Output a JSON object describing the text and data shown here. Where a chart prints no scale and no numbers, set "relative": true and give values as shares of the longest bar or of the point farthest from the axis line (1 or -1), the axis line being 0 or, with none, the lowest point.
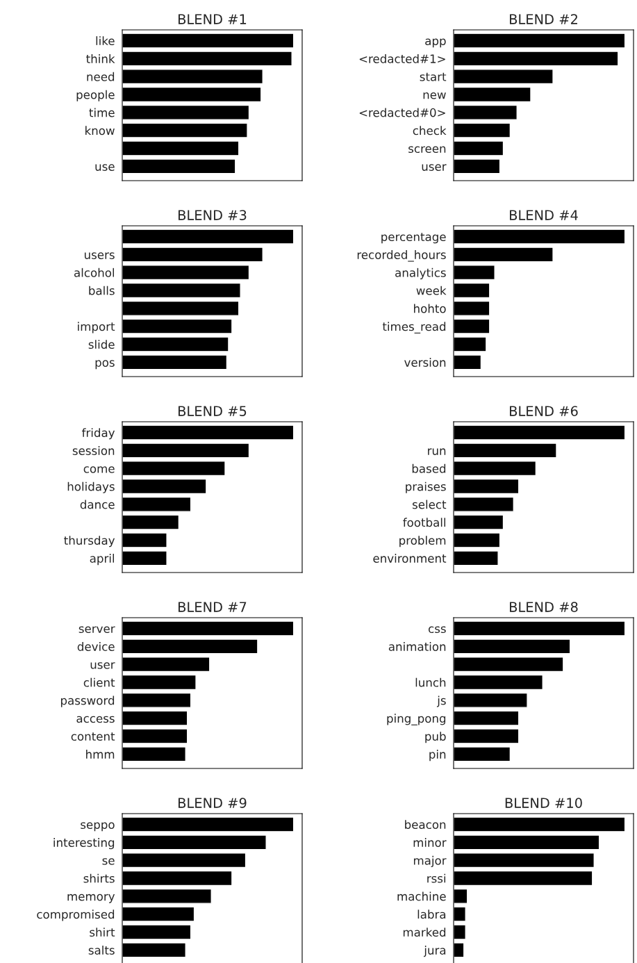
{
  "chart_data": [
    {
      "type": "bar",
      "orientation": "horizontal",
      "relative": true,
      "tick_labels": "y",
      "color": "#000000",
      "title": "BLEND #1",
      "categories": [
        "like",
        "think",
        "need",
        "people",
        "time",
        "know",
        null,
        "use"
      ],
      "values": [
        1,
        0.99,
        0.82,
        0.81,
        0.74,
        0.73,
        0.68,
        0.66
      ]
    },
    {
      "type": "bar",
      "orientation": "horizontal",
      "relative": true,
      "tick_labels": "y",
      "color": "#000000",
      "title": "BLEND #2",
      "categories": [
        "app",
        "<redacted#1>",
        "start",
        "new",
        "<redacted#0>",
        "check",
        "screen",
        "user"
      ],
      "values": [
        1,
        0.96,
        0.58,
        0.45,
        0.37,
        0.33,
        0.29,
        0.27
      ]
    },
    {
      "type": "bar",
      "orientation": "horizontal",
      "relative": true,
      "tick_labels": "y",
      "color": "#000000",
      "title": "BLEND #3",
      "categories": [
        null,
        "users",
        "alcohol",
        "balls",
        null,
        "import",
        "slide",
        "pos"
      ],
      "values": [
        1,
        0.82,
        0.74,
        0.69,
        0.68,
        0.64,
        0.62,
        0.61
      ]
    },
    {
      "type": "bar",
      "orientation": "horizontal",
      "relative": true,
      "tick_labels": "y",
      "color": "#000000",
      "title": "BLEND #4",
      "categories": [
        "percentage",
        "recorded_hours",
        "analytics",
        "week",
        "hohto",
        "times_read",
        null,
        "version"
      ],
      "values": [
        1,
        0.58,
        0.24,
        0.21,
        0.21,
        0.21,
        0.19,
        0.16
      ]
    },
    {
      "type": "bar",
      "orientation": "horizontal",
      "relative": true,
      "tick_labels": "y",
      "color": "#000000",
      "title": "BLEND #5",
      "categories": [
        "friday",
        "session",
        "come",
        "holidays",
        "dance",
        null,
        "thursday",
        "april"
      ],
      "values": [
        1,
        0.74,
        0.6,
        0.49,
        0.4,
        0.33,
        0.26,
        0.26
      ]
    },
    {
      "type": "bar",
      "orientation": "horizontal",
      "relative": true,
      "tick_labels": "y",
      "color": "#000000",
      "title": "BLEND #6",
      "categories": [
        null,
        "run",
        "based",
        "praises",
        "select",
        "football",
        "problem",
        "environment"
      ],
      "values": [
        1,
        0.6,
        0.48,
        0.38,
        0.35,
        0.29,
        0.27,
        0.26
      ]
    },
    {
      "type": "bar",
      "orientation": "horizontal",
      "relative": true,
      "tick_labels": "y",
      "color": "#000000",
      "title": "BLEND #7",
      "categories": [
        "server",
        "device",
        "user",
        "client",
        "password",
        "access",
        "content",
        "hmm"
      ],
      "values": [
        1,
        0.79,
        0.51,
        0.43,
        0.4,
        0.38,
        0.38,
        0.37
      ]
    },
    {
      "type": "bar",
      "orientation": "horizontal",
      "relative": true,
      "tick_labels": "y",
      "color": "#000000",
      "title": "BLEND #8",
      "categories": [
        "css",
        "animation",
        null,
        "lunch",
        "js",
        "ping_pong",
        "pub",
        "pin"
      ],
      "values": [
        1,
        0.68,
        0.64,
        0.52,
        0.43,
        0.38,
        0.38,
        0.33
      ]
    },
    {
      "type": "bar",
      "orientation": "horizontal",
      "relative": true,
      "tick_labels": "y",
      "color": "#000000",
      "title": "BLEND #9",
      "categories": [
        "seppo",
        "interesting",
        "se",
        "shirts",
        "memory",
        "compromised",
        "shirt",
        "salts"
      ],
      "values": [
        1,
        0.84,
        0.72,
        0.64,
        0.52,
        0.42,
        0.4,
        0.37
      ]
    },
    {
      "type": "bar",
      "orientation": "horizontal",
      "relative": true,
      "tick_labels": "y",
      "color": "#000000",
      "title": "BLEND #10",
      "categories": [
        "beacon",
        "minor",
        "major",
        "rssi",
        "machine",
        "labra",
        "marked",
        "jura"
      ],
      "values": [
        1,
        0.85,
        0.82,
        0.81,
        0.08,
        0.07,
        0.07,
        0.06
      ]
    }
  ]
}
